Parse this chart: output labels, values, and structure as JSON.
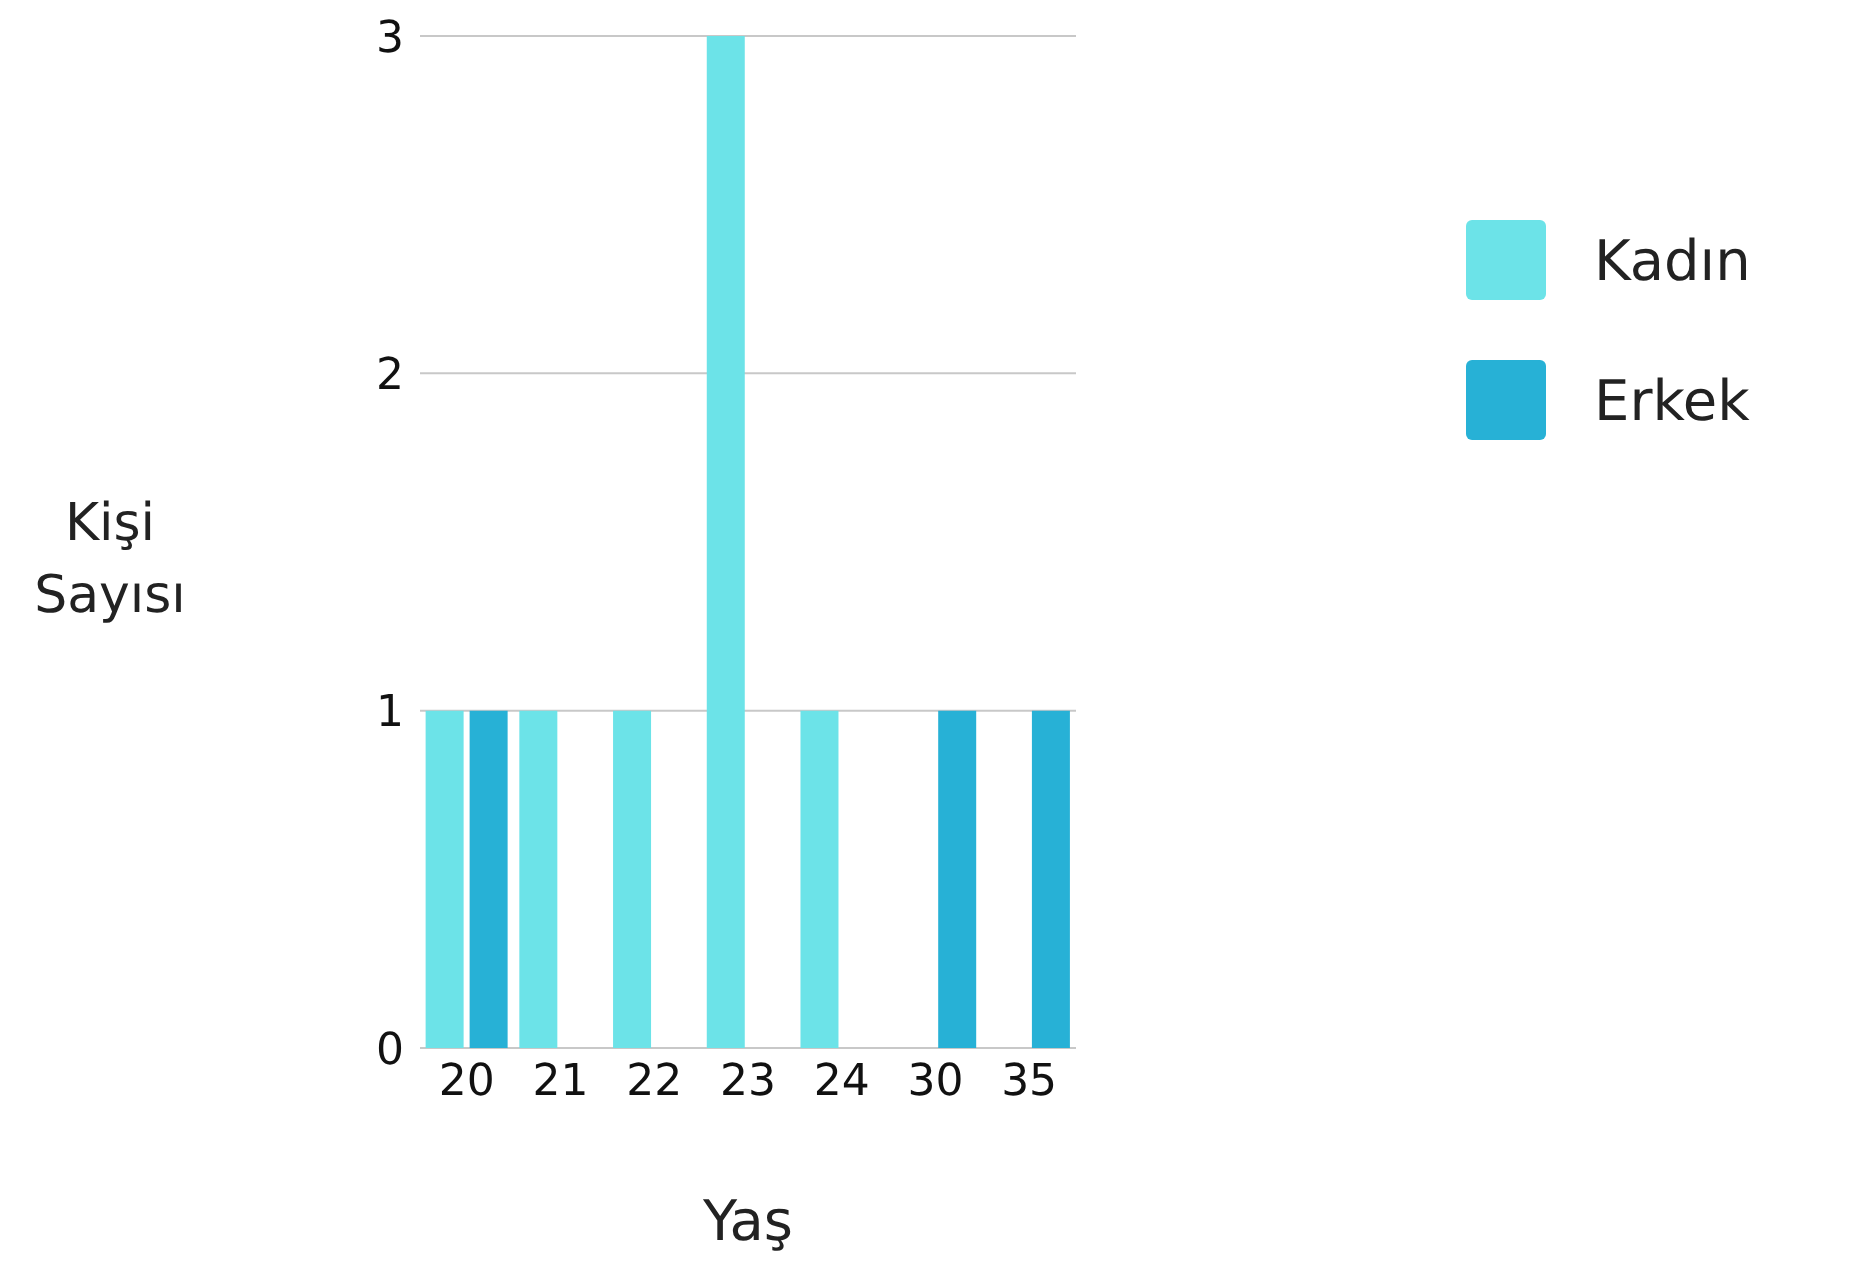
{
  "chart_data": {
    "type": "bar",
    "xlabel": "Yaş",
    "ylabel": "Kişi Sayısı",
    "categories": [
      "20",
      "21",
      "22",
      "23",
      "24",
      "30",
      "35"
    ],
    "series": [
      {
        "name": "Kadın",
        "color": "#6ce3e8",
        "values": [
          1,
          1,
          1,
          3,
          1,
          0,
          0
        ]
      },
      {
        "name": "Erkek",
        "color": "#27b1d6",
        "values": [
          1,
          0,
          0,
          0,
          0,
          1,
          1
        ]
      }
    ],
    "ylim": [
      0,
      3
    ],
    "yticks": [
      0,
      1,
      2,
      3
    ],
    "grid": "y",
    "legend": "right"
  }
}
